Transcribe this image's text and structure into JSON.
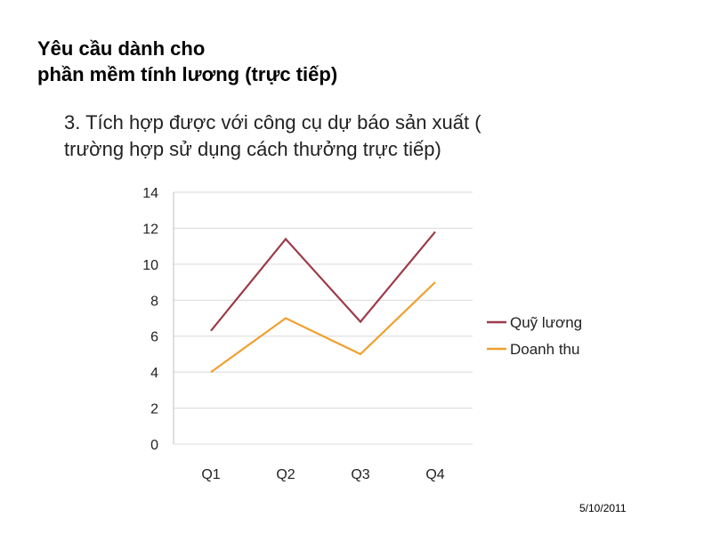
{
  "slide": {
    "title_line1": "Yêu cầu dành cho",
    "title_line2": "phần mềm tính lương (trực tiếp)",
    "subtitle_line1": "3. Tích hợp được với công cụ dự báo sản xuất (",
    "subtitle_line2": "trường hợp sử dụng cách thưởng trực tiếp)",
    "date": "5/10/2011"
  },
  "chart_data": {
    "type": "line",
    "categories": [
      "Q1",
      "Q2",
      "Q3",
      "Q4"
    ],
    "series": [
      {
        "name": "Quỹ lương",
        "values": [
          6.3,
          11.4,
          6.8,
          11.8
        ],
        "color": "#9b3b4a"
      },
      {
        "name": "Doanh thu",
        "values": [
          4,
          7,
          5,
          9
        ],
        "color": "#f0a030"
      }
    ],
    "y_ticks": [
      "0",
      "2",
      "4",
      "6",
      "8",
      "10",
      "12",
      "14"
    ],
    "ylim": [
      0,
      14
    ],
    "grid": true,
    "legend_position": "right",
    "title": "",
    "xlabel": "",
    "ylabel": ""
  }
}
